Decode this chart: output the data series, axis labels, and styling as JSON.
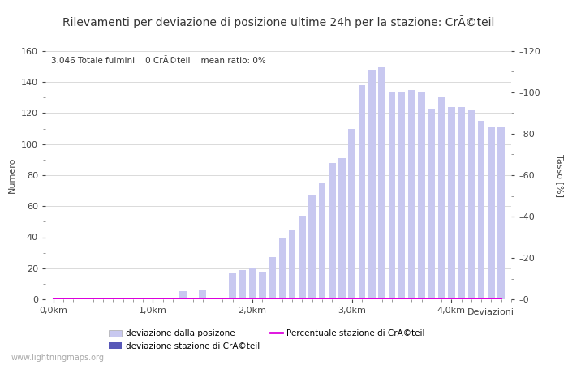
{
  "title": "Rilevamenti per deviazione di posizione ultime 24h per la stazione: CrÃ©teil",
  "subtitle": "3.046 Totale fulmini    0 CrÃ©teil    mean ratio: 0%",
  "xlabel": "Deviazioni",
  "ylabel_left": "Numero",
  "ylabel_right": "Tasso [%]",
  "watermark": "www.lightningmaps.org",
  "bar_width": 0.07,
  "x_positions": [
    0.0,
    0.1,
    0.2,
    0.3,
    0.4,
    0.5,
    0.6,
    0.7,
    0.8,
    0.9,
    1.0,
    1.1,
    1.2,
    1.3,
    1.4,
    1.5,
    1.6,
    1.7,
    1.8,
    1.9,
    2.0,
    2.1,
    2.2,
    2.3,
    2.4,
    2.5,
    2.6,
    2.7,
    2.8,
    2.9,
    3.0,
    3.1,
    3.2,
    3.3,
    3.4,
    3.5,
    3.6,
    3.7,
    3.8,
    3.9,
    4.0,
    4.1,
    4.2,
    4.3,
    4.4,
    4.5
  ],
  "values_total": [
    0,
    0,
    0,
    0,
    0,
    0,
    0,
    0,
    0,
    0,
    0,
    0,
    0,
    5,
    0,
    6,
    0,
    0,
    17,
    19,
    20,
    18,
    27,
    40,
    45,
    54,
    67,
    75,
    88,
    91,
    110,
    138,
    148,
    150,
    134,
    134,
    135,
    134,
    123,
    130,
    124,
    124,
    122,
    115,
    111,
    111
  ],
  "values_station": [
    0,
    0,
    0,
    0,
    0,
    0,
    0,
    0,
    0,
    0,
    0,
    0,
    0,
    0,
    0,
    0,
    0,
    0,
    0,
    0,
    0,
    0,
    0,
    0,
    0,
    0,
    0,
    0,
    0,
    0,
    0,
    0,
    0,
    0,
    0,
    0,
    0,
    0,
    0,
    0,
    0,
    0,
    0,
    0,
    0,
    0
  ],
  "values_ratio": [
    0,
    0,
    0,
    0,
    0,
    0,
    0,
    0,
    0,
    0,
    0,
    0,
    0,
    0,
    0,
    0,
    0,
    0,
    0,
    0,
    0,
    0,
    0,
    0,
    0,
    0,
    0,
    0,
    0,
    0,
    0,
    0,
    0,
    0,
    0,
    0,
    0,
    0,
    0,
    0,
    0,
    0,
    0,
    0,
    0,
    0
  ],
  "color_total": "#c8c8f0",
  "color_station": "#5858b8",
  "color_ratio": "#dd00dd",
  "ylim_left": [
    0,
    160
  ],
  "ylim_right": [
    0,
    120
  ],
  "yticks_left": [
    0,
    20,
    40,
    60,
    80,
    100,
    120,
    140,
    160
  ],
  "yticks_right": [
    0,
    20,
    40,
    60,
    80,
    100,
    120
  ],
  "xtick_labels": [
    "0,0km",
    "1,0km",
    "2,0km",
    "3,0km",
    "4,0km"
  ],
  "xtick_positions": [
    0.0,
    1.0,
    2.0,
    3.0,
    4.0
  ],
  "legend_label_total": "deviazione dalla posizone",
  "legend_label_station": "deviazione stazione di CrÃ©teil",
  "legend_label_ratio": "Percentuale stazione di CrÃ©teil",
  "bg_color": "#ffffff",
  "grid_color": "#999999",
  "title_fontsize": 10,
  "axis_fontsize": 8,
  "tick_fontsize": 8
}
